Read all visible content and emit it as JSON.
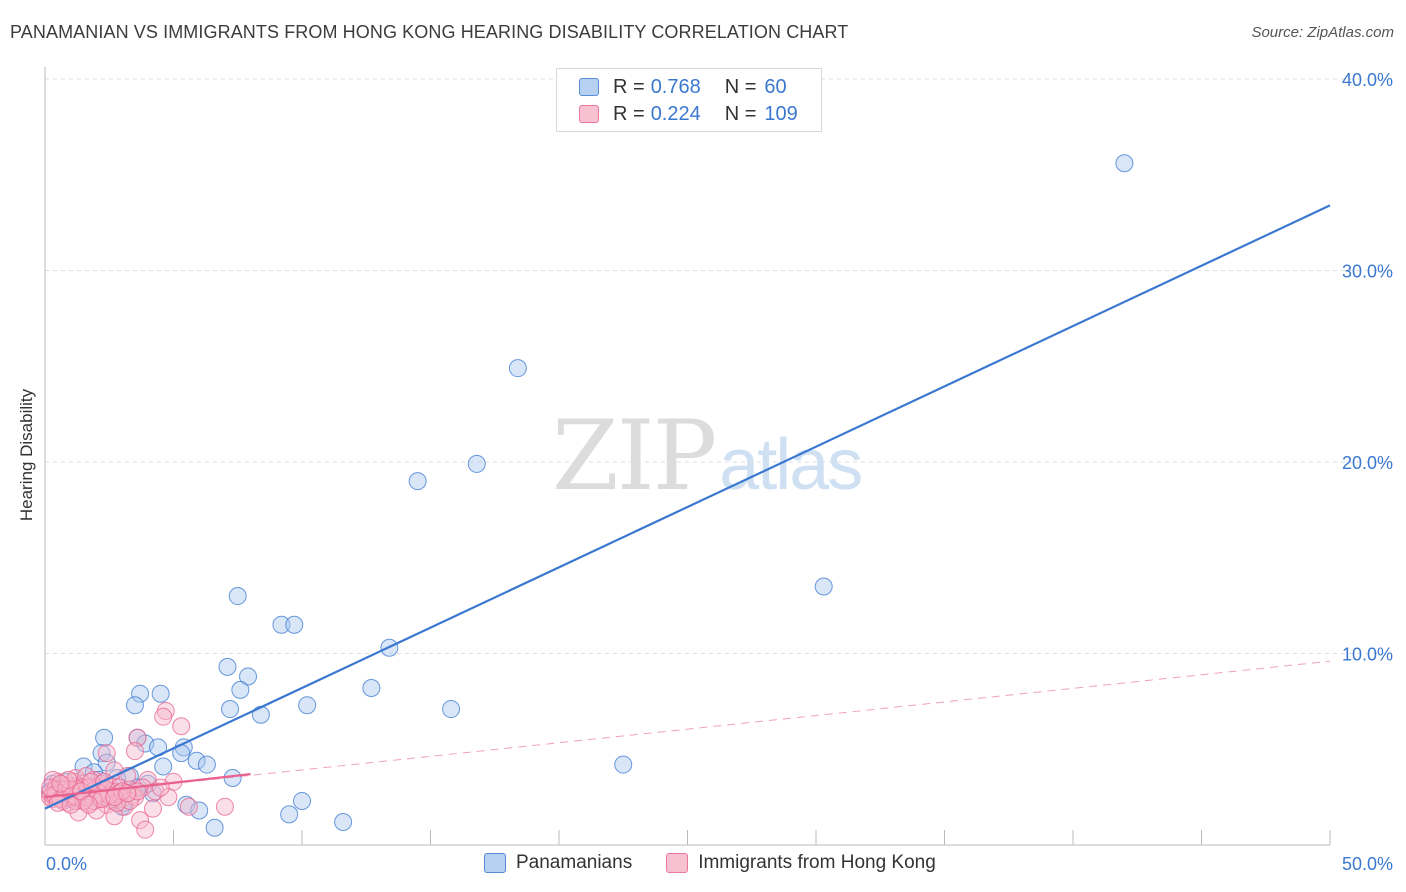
{
  "header": {
    "title": "PANAMANIAN VS IMMIGRANTS FROM HONG KONG HEARING DISABILITY CORRELATION CHART",
    "source": "Source: ZipAtlas.com"
  },
  "watermark": {
    "zip": "ZIP",
    "atlas": "atlas"
  },
  "legend": {
    "rows": [
      {
        "r_label": "R =",
        "r_value": "0.768",
        "n_label": "N =",
        "n_value": "60",
        "color": "#a9c8ee"
      },
      {
        "r_label": "R =",
        "r_value": "0.224",
        "n_label": "N =",
        "n_value": "109",
        "color": "#f6b7cb"
      }
    ]
  },
  "bottom_legend": [
    {
      "label": "Panamanians",
      "color": "#a9c8ee"
    },
    {
      "label": "Immigrants from Hong Kong",
      "color": "#f6b7cb"
    }
  ],
  "colors": {
    "blue": "#3a78d0",
    "blue_fill": "#a9c8ee",
    "pink": "#e8628d",
    "pink_fill": "#f6b7cb",
    "grid": "#dddddd",
    "tick_text": "#3a78d0"
  },
  "chart_data": {
    "type": "scatter",
    "title": "PANAMANIAN VS IMMIGRANTS FROM HONG KONG HEARING DISABILITY CORRELATION CHART",
    "xlabel": "",
    "ylabel": "Hearing Disability",
    "xlim": [
      0,
      50
    ],
    "ylim": [
      0,
      40
    ],
    "x_tick_labels": [
      {
        "value": 0,
        "label": "0.0%"
      },
      {
        "value": 50,
        "label": "50.0%"
      }
    ],
    "y_tick_labels": [
      {
        "value": 10,
        "label": "10.0%"
      },
      {
        "value": 20,
        "label": "20.0%"
      },
      {
        "value": 30,
        "label": "30.0%"
      },
      {
        "value": 40,
        "label": "40.0%"
      }
    ],
    "x_minor_ticks": [
      5,
      10,
      15,
      20,
      25,
      30,
      35,
      40,
      45,
      50
    ],
    "y_gridlines": [
      10,
      20,
      30,
      40
    ],
    "grid": true,
    "legend_position": "top-center",
    "series": [
      {
        "name": "Panamanians",
        "color": "#3a78d0",
        "fill": "#a9c8ee",
        "points": [
          [
            42.0,
            35.6
          ],
          [
            18.4,
            24.9
          ],
          [
            16.8,
            19.9
          ],
          [
            14.5,
            19.0
          ],
          [
            30.3,
            13.5
          ],
          [
            7.5,
            13.0
          ],
          [
            9.2,
            11.5
          ],
          [
            9.7,
            11.5
          ],
          [
            13.4,
            10.3
          ],
          [
            7.1,
            9.3
          ],
          [
            7.9,
            8.8
          ],
          [
            12.7,
            8.2
          ],
          [
            7.6,
            8.1
          ],
          [
            3.7,
            7.9
          ],
          [
            4.5,
            7.9
          ],
          [
            7.2,
            7.1
          ],
          [
            10.2,
            7.3
          ],
          [
            3.5,
            7.3
          ],
          [
            8.4,
            6.8
          ],
          [
            15.8,
            7.1
          ],
          [
            3.6,
            5.6
          ],
          [
            2.3,
            5.6
          ],
          [
            3.9,
            5.3
          ],
          [
            4.4,
            5.1
          ],
          [
            5.4,
            5.1
          ],
          [
            2.2,
            4.8
          ],
          [
            5.3,
            4.8
          ],
          [
            2.4,
            4.3
          ],
          [
            5.9,
            4.4
          ],
          [
            6.3,
            4.2
          ],
          [
            1.5,
            4.1
          ],
          [
            4.6,
            4.1
          ],
          [
            22.5,
            4.2
          ],
          [
            1.9,
            3.8
          ],
          [
            3.3,
            3.6
          ],
          [
            7.3,
            3.5
          ],
          [
            2.8,
            3.5
          ],
          [
            0.8,
            3.3
          ],
          [
            0.3,
            3.2
          ],
          [
            1.3,
            3.1
          ],
          [
            3.6,
            3.0
          ],
          [
            4.2,
            2.7
          ],
          [
            0.7,
            2.9
          ],
          [
            1.2,
            2.6
          ],
          [
            2.0,
            2.8
          ],
          [
            2.6,
            2.4
          ],
          [
            3.1,
            2.2
          ],
          [
            5.5,
            2.1
          ],
          [
            6.0,
            1.8
          ],
          [
            10.0,
            2.3
          ],
          [
            9.5,
            1.6
          ],
          [
            6.6,
            0.9
          ],
          [
            11.6,
            1.2
          ],
          [
            3.0,
            2.0
          ],
          [
            0.2,
            2.8
          ],
          [
            1.0,
            2.4
          ],
          [
            4.0,
            3.2
          ],
          [
            2.1,
            3.4
          ],
          [
            0.5,
            3.0
          ],
          [
            1.7,
            2.6
          ]
        ],
        "trendline": {
          "x": [
            0.0,
            50.0
          ],
          "y": [
            1.9,
            33.4
          ]
        }
      },
      {
        "name": "Immigrants from Hong Kong",
        "color": "#e8628d",
        "fill": "#f6b7cb",
        "points": [
          [
            4.7,
            7.0
          ],
          [
            4.6,
            6.7
          ],
          [
            5.3,
            6.2
          ],
          [
            3.6,
            5.6
          ],
          [
            3.5,
            4.9
          ],
          [
            2.4,
            4.8
          ],
          [
            2.7,
            3.9
          ],
          [
            3.2,
            3.6
          ],
          [
            4.0,
            3.4
          ],
          [
            5.0,
            3.3
          ],
          [
            1.2,
            3.5
          ],
          [
            1.9,
            3.4
          ],
          [
            2.2,
            3.2
          ],
          [
            0.9,
            3.1
          ],
          [
            1.5,
            3.2
          ],
          [
            0.4,
            3.0
          ],
          [
            0.7,
            3.1
          ],
          [
            1.1,
            2.9
          ],
          [
            1.6,
            2.9
          ],
          [
            2.0,
            3.0
          ],
          [
            2.5,
            3.1
          ],
          [
            2.9,
            3.0
          ],
          [
            3.3,
            2.9
          ],
          [
            3.8,
            3.0
          ],
          [
            4.3,
            2.8
          ],
          [
            0.2,
            2.7
          ],
          [
            0.5,
            2.6
          ],
          [
            0.8,
            2.8
          ],
          [
            1.3,
            2.7
          ],
          [
            1.8,
            2.6
          ],
          [
            2.3,
            2.7
          ],
          [
            2.8,
            2.6
          ],
          [
            3.4,
            2.6
          ],
          [
            0.3,
            2.4
          ],
          [
            0.6,
            2.5
          ],
          [
            1.0,
            2.5
          ],
          [
            1.4,
            2.4
          ],
          [
            2.1,
            2.4
          ],
          [
            2.6,
            2.3
          ],
          [
            3.0,
            2.4
          ],
          [
            0.9,
            2.2
          ],
          [
            1.7,
            2.2
          ],
          [
            2.4,
            2.1
          ],
          [
            3.1,
            2.0
          ],
          [
            4.2,
            1.9
          ],
          [
            5.6,
            2.0
          ],
          [
            7.0,
            2.0
          ],
          [
            2.7,
            1.5
          ],
          [
            3.7,
            1.3
          ],
          [
            3.9,
            0.8
          ],
          [
            1.3,
            1.7
          ],
          [
            2.0,
            1.8
          ],
          [
            0.5,
            3.3
          ],
          [
            1.1,
            3.3
          ],
          [
            1.6,
            3.6
          ],
          [
            0.3,
            3.4
          ],
          [
            1.9,
            2.5
          ],
          [
            2.2,
            2.9
          ],
          [
            0.7,
            2.3
          ],
          [
            1.5,
            2.6
          ],
          [
            0.4,
            2.9
          ],
          [
            1.0,
            2.7
          ],
          [
            2.6,
            2.8
          ],
          [
            3.5,
            2.5
          ],
          [
            0.8,
            2.6
          ],
          [
            1.2,
            2.3
          ],
          [
            1.8,
            2.8
          ],
          [
            2.3,
            2.5
          ],
          [
            0.6,
            2.9
          ],
          [
            1.4,
            3.0
          ],
          [
            0.2,
            2.5
          ],
          [
            0.9,
            2.5
          ],
          [
            2.9,
            2.7
          ],
          [
            3.3,
            2.3
          ],
          [
            1.7,
            3.0
          ],
          [
            0.5,
            2.7
          ],
          [
            1.1,
            2.6
          ],
          [
            2.0,
            2.6
          ],
          [
            2.4,
            2.9
          ],
          [
            0.3,
            2.6
          ],
          [
            0.7,
            2.7
          ],
          [
            1.3,
            2.9
          ],
          [
            1.6,
            2.5
          ],
          [
            2.1,
            2.7
          ],
          [
            2.8,
            2.2
          ],
          [
            0.4,
            2.6
          ],
          [
            0.8,
            2.9
          ],
          [
            1.2,
            2.5
          ],
          [
            1.9,
            2.3
          ],
          [
            3.6,
            2.8
          ],
          [
            0.6,
            2.4
          ],
          [
            1.0,
            2.9
          ],
          [
            1.5,
            2.3
          ],
          [
            2.5,
            2.6
          ],
          [
            3.0,
            2.8
          ],
          [
            4.8,
            2.5
          ],
          [
            4.5,
            3.0
          ],
          [
            1.4,
            2.8
          ],
          [
            0.2,
            3.0
          ],
          [
            2.2,
            2.4
          ],
          [
            1.8,
            3.3
          ],
          [
            0.9,
            3.4
          ],
          [
            2.7,
            2.5
          ],
          [
            0.5,
            2.2
          ],
          [
            3.2,
            2.7
          ],
          [
            1.7,
            2.1
          ],
          [
            0.6,
            3.2
          ],
          [
            1.0,
            2.1
          ],
          [
            2.3,
            3.3
          ]
        ],
        "trendline": {
          "x": [
            0.0,
            8.0
          ],
          "y": [
            2.5,
            3.7
          ]
        },
        "trendline_extended": {
          "x": [
            0.0,
            50.0
          ],
          "y": [
            2.5,
            9.6
          ]
        }
      }
    ]
  }
}
